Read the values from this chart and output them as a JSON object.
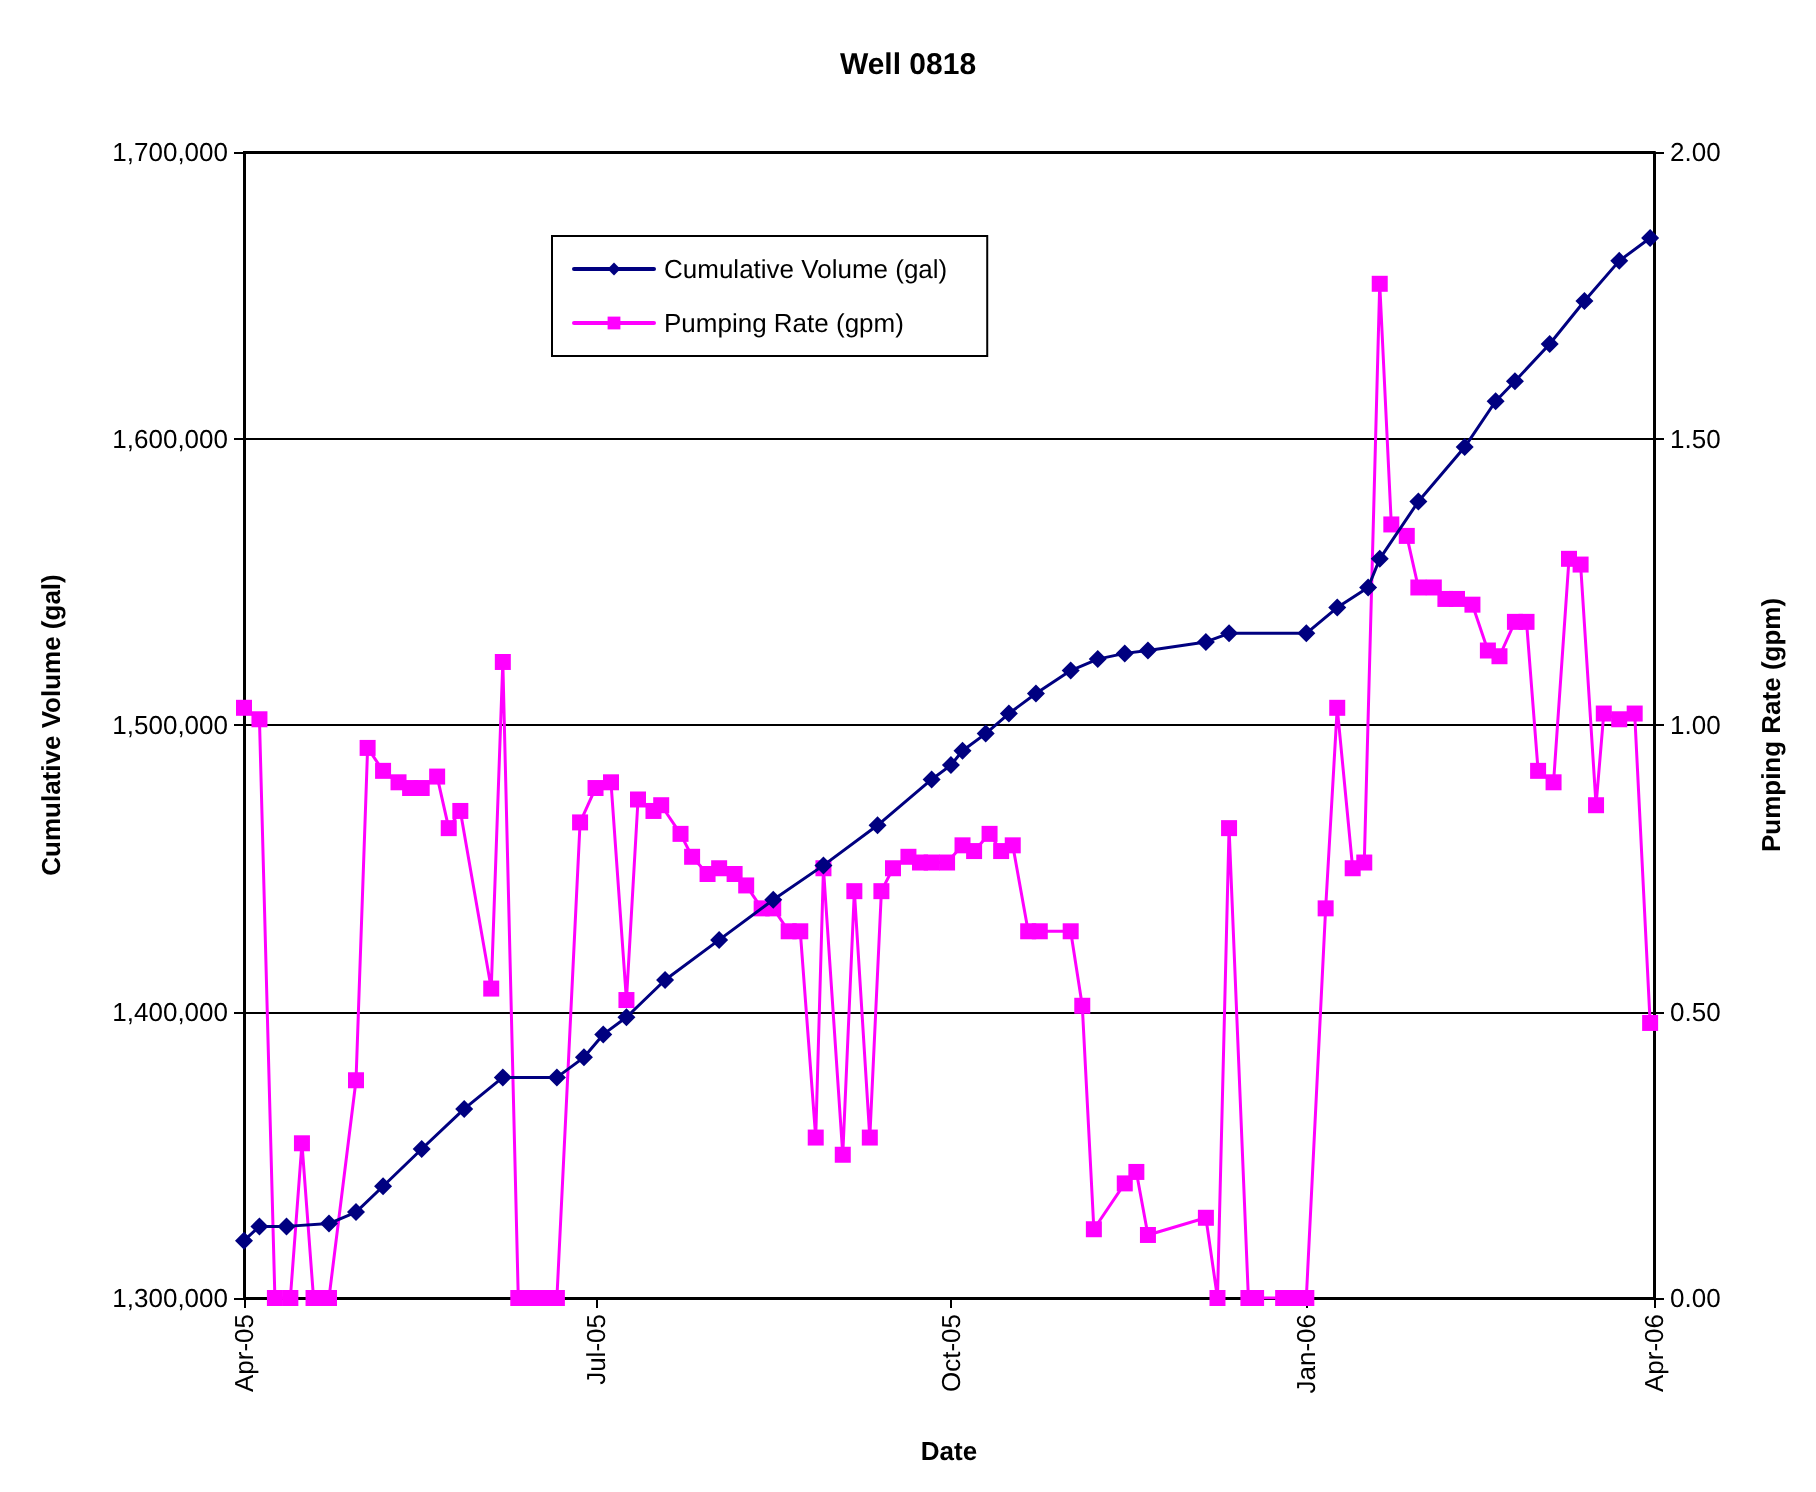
{
  "chart_data": {
    "type": "line",
    "title": "Well 0818",
    "xlabel": "Date",
    "ylabel": "Cumulative Volume (gal)",
    "y2label": "Pumping Rate (gpm)",
    "xlim": [
      "2005-04-01",
      "2006-04-01"
    ],
    "xticks": [
      {
        "value": "2005-04-01",
        "label": "Apr-05"
      },
      {
        "value": "2005-07-01",
        "label": "Jul-05"
      },
      {
        "value": "2005-10-01",
        "label": "Oct-05"
      },
      {
        "value": "2006-01-01",
        "label": "Jan-06"
      },
      {
        "value": "2006-04-01",
        "label": "Apr-06"
      }
    ],
    "ylim": [
      1300000,
      1700000
    ],
    "yticks": [
      {
        "value": 1300000,
        "label": "1,300,000"
      },
      {
        "value": 1400000,
        "label": "1,400,000"
      },
      {
        "value": 1500000,
        "label": "1,500,000"
      },
      {
        "value": 1600000,
        "label": "1,600,000"
      },
      {
        "value": 1700000,
        "label": "1,700,000"
      }
    ],
    "y2lim": [
      0,
      2
    ],
    "y2ticks": [
      {
        "value": 0,
        "label": "0.00"
      },
      {
        "value": 0.5,
        "label": "0.50"
      },
      {
        "value": 1,
        "label": "1.00"
      },
      {
        "value": 1.5,
        "label": "1.50"
      },
      {
        "value": 2,
        "label": "2.00"
      }
    ],
    "grid": "y",
    "legend": "top left",
    "series": [
      {
        "name": "Cumulative Volume (gal)",
        "color": "#000080",
        "marker": "diamond",
        "x": [
          "2005-04-01",
          "2005-04-05",
          "2005-04-12",
          "2005-04-23",
          "2005-04-30",
          "2005-05-07",
          "2005-05-17",
          "2005-05-28",
          "2005-06-07",
          "2005-06-21",
          "2005-06-28",
          "2005-07-03",
          "2005-07-09",
          "2005-07-19",
          "2005-08-02",
          "2005-08-16",
          "2005-08-29",
          "2005-09-12",
          "2005-09-26",
          "2005-10-01",
          "2005-10-04",
          "2005-10-10",
          "2005-10-16",
          "2005-10-23",
          "2005-11-01",
          "2005-11-08",
          "2005-11-15",
          "2005-11-21",
          "2005-12-06",
          "2005-12-12",
          "2006-01-01",
          "2006-01-09",
          "2006-01-17",
          "2006-01-20",
          "2006-01-30",
          "2006-02-11",
          "2006-02-19",
          "2006-02-24",
          "2006-03-05",
          "2006-03-14",
          "2006-03-23",
          "2006-03-31"
        ],
        "values": [
          1320000,
          1325000,
          1325000,
          1326000,
          1330000,
          1339000,
          1352000,
          1366000,
          1377000,
          1377000,
          1384000,
          1392000,
          1398000,
          1411000,
          1425000,
          1439000,
          1451000,
          1465000,
          1481000,
          1486000,
          1491000,
          1497000,
          1504000,
          1511000,
          1519000,
          1523000,
          1525000,
          1526000,
          1529000,
          1532000,
          1532000,
          1541000,
          1548000,
          1558000,
          1578000,
          1597000,
          1613000,
          1620000,
          1633000,
          1648000,
          1662000,
          1670000
        ]
      },
      {
        "name": "Pumping Rate (gpm)",
        "color": "#ff00ff",
        "marker": "square",
        "axis": "y2",
        "x": [
          "2005-04-01",
          "2005-04-05",
          "2005-04-09",
          "2005-04-13",
          "2005-04-16",
          "2005-04-19",
          "2005-04-23",
          "2005-04-30",
          "2005-05-03",
          "2005-05-07",
          "2005-05-11",
          "2005-05-14",
          "2005-05-17",
          "2005-05-21",
          "2005-05-24",
          "2005-05-27",
          "2005-06-04",
          "2005-06-07",
          "2005-06-11",
          "2005-06-14",
          "2005-06-17",
          "2005-06-21",
          "2005-06-27",
          "2005-07-01",
          "2005-07-05",
          "2005-07-09",
          "2005-07-12",
          "2005-07-16",
          "2005-07-18",
          "2005-07-23",
          "2005-07-26",
          "2005-07-30",
          "2005-08-02",
          "2005-08-06",
          "2005-08-09",
          "2005-08-13",
          "2005-08-16",
          "2005-08-20",
          "2005-08-23",
          "2005-08-27",
          "2005-08-29",
          "2005-09-03",
          "2005-09-06",
          "2005-09-10",
          "2005-09-13",
          "2005-09-16",
          "2005-09-20",
          "2005-09-23",
          "2005-09-26",
          "2005-09-30",
          "2005-10-04",
          "2005-10-07",
          "2005-10-11",
          "2005-10-14",
          "2005-10-17",
          "2005-10-21",
          "2005-10-24",
          "2005-11-01",
          "2005-11-04",
          "2005-11-07",
          "2005-11-15",
          "2005-11-18",
          "2005-11-21",
          "2005-12-06",
          "2005-12-09",
          "2005-12-12",
          "2005-12-17",
          "2005-12-19",
          "2005-12-26",
          "2005-12-29",
          "2006-01-01",
          "2006-01-06",
          "2006-01-09",
          "2006-01-13",
          "2006-01-16",
          "2006-01-20",
          "2006-01-23",
          "2006-01-27",
          "2006-01-30",
          "2006-02-03",
          "2006-02-06",
          "2006-02-09",
          "2006-02-13",
          "2006-02-17",
          "2006-02-20",
          "2006-02-24",
          "2006-02-27",
          "2006-03-02",
          "2006-03-06",
          "2006-03-10",
          "2006-03-13",
          "2006-03-17",
          "2006-03-19",
          "2006-03-23",
          "2006-03-27",
          "2006-03-31"
        ],
        "values": [
          1.03,
          1.01,
          0,
          0,
          0.27,
          0,
          0,
          0.38,
          0.96,
          0.92,
          0.9,
          0.89,
          0.89,
          0.91,
          0.82,
          0.85,
          0.54,
          1.11,
          0,
          0,
          0,
          0,
          0.83,
          0.89,
          0.9,
          0.52,
          0.87,
          0.85,
          0.86,
          0.81,
          0.77,
          0.74,
          0.75,
          0.74,
          0.72,
          0.68,
          0.68,
          0.64,
          0.64,
          0.28,
          0.75,
          0.25,
          0.71,
          0.28,
          0.71,
          0.75,
          0.77,
          0.76,
          0.76,
          0.76,
          0.79,
          0.78,
          0.81,
          0.78,
          0.79,
          0.64,
          0.64,
          0.64,
          0.51,
          0.12,
          0.2,
          0.22,
          0.11,
          0.14,
          0,
          0.82,
          0,
          0,
          0,
          0,
          0,
          0.68,
          1.03,
          0.75,
          0.76,
          1.77,
          1.35,
          1.33,
          1.24,
          1.24,
          1.22,
          1.22,
          1.21,
          1.13,
          1.12,
          1.18,
          1.18,
          0.92,
          0.9,
          1.29,
          1.28,
          0.86,
          1.02,
          1.01,
          1.02,
          0.48
        ]
      }
    ]
  }
}
